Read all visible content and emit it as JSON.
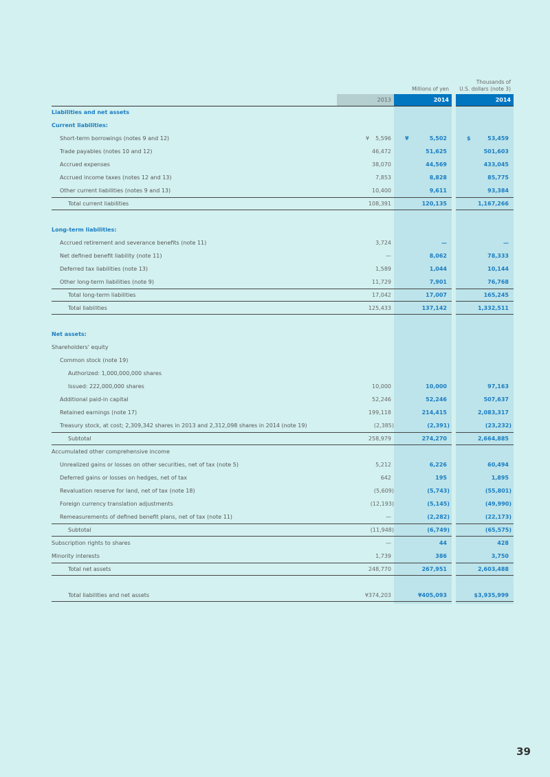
{
  "header": {
    "units_yen": "Millions of yen",
    "units_usd_line1": "Thousands of",
    "units_usd_line2": "U.S. dollars (note 3)",
    "col_2013": "2013",
    "col_2014_yen": "2014",
    "col_2014_usd": "2014"
  },
  "colors": {
    "accent": "#0075c0",
    "blue_text": "#1a7cc1",
    "shade": "#bde4ea",
    "background": "#d3f1f0"
  },
  "rows": [
    {
      "label": "Liabilities and net assets",
      "type": "section",
      "indent": 0
    },
    {
      "label": "Current liabilities:",
      "type": "section",
      "indent": 0
    },
    {
      "label": "Short-term borrowings (notes 9 and 12)",
      "indent": 1,
      "values": [
        "5,596",
        "5,502",
        "53,459"
      ],
      "currency": [
        "¥",
        "¥",
        "$"
      ]
    },
    {
      "label": "Trade payables (notes 10 and 12)",
      "indent": 1,
      "values": [
        "46,472",
        "51,625",
        "501,603"
      ]
    },
    {
      "label": "Accrued expenses",
      "indent": 1,
      "values": [
        "38,070",
        "44,569",
        "433,045"
      ]
    },
    {
      "label": "Accrued income taxes (notes 12 and 13)",
      "indent": 1,
      "values": [
        "7,853",
        "8,828",
        "85,775"
      ]
    },
    {
      "label": "Other current liabilities (notes 9 and 13)",
      "indent": 1,
      "values": [
        "10,400",
        "9,611",
        "93,384"
      ]
    },
    {
      "label": "Total current liabilities",
      "indent": 2,
      "type": "total",
      "values": [
        "108,391",
        "120,135",
        "1,167,266"
      ]
    },
    {
      "label": "",
      "type": "blank"
    },
    {
      "label": "Long-term liabilities:",
      "type": "section",
      "indent": 0
    },
    {
      "label": "Accrued retirement and severance benefits (note 11)",
      "indent": 1,
      "values": [
        "3,724",
        "—",
        "—"
      ]
    },
    {
      "label": "Net defined benefit liability (note 11)",
      "indent": 1,
      "values": [
        "—",
        "8,062",
        "78,333"
      ]
    },
    {
      "label": "Deferred tax liabilities (note 13)",
      "indent": 1,
      "values": [
        "1,589",
        "1,044",
        "10,144"
      ]
    },
    {
      "label": "Other long-term liabilities (note 9)",
      "indent": 1,
      "values": [
        "11,729",
        "7,901",
        "76,768"
      ]
    },
    {
      "label": "Total long-term liabilities",
      "indent": 2,
      "type": "total",
      "values": [
        "17,042",
        "17,007",
        "165,245"
      ]
    },
    {
      "label": "Total liabilities",
      "indent": 2,
      "type": "total-bottom",
      "values": [
        "125,433",
        "137,142",
        "1,332,511"
      ]
    },
    {
      "label": "",
      "type": "blank"
    },
    {
      "label": "Net assets:",
      "type": "section",
      "indent": 0
    },
    {
      "label": "Shareholders' equity",
      "indent": 0
    },
    {
      "label": "Common stock (note 19)",
      "indent": 1
    },
    {
      "label": "Authorized: 1,000,000,000 shares",
      "indent": 2
    },
    {
      "label": "Issued: 222,000,000 shares",
      "indent": 2,
      "values": [
        "10,000",
        "10,000",
        "97,163"
      ]
    },
    {
      "label": "Additional paid-in capital",
      "indent": 1,
      "values": [
        "52,246",
        "52,246",
        "507,637"
      ]
    },
    {
      "label": "Retained earnings (note 17)",
      "indent": 1,
      "values": [
        "199,118",
        "214,415",
        "2,083,317"
      ]
    },
    {
      "label": "Treasury stock, at cost; 2,309,342 shares in 2013 and 2,312,098 shares in 2014 (note 19)",
      "indent": 1,
      "values": [
        "(2,385)",
        "(2,391)",
        "(23,232)"
      ]
    },
    {
      "label": "Subtotal",
      "indent": 2,
      "type": "total",
      "values": [
        "258,979",
        "274,270",
        "2,664,885"
      ]
    },
    {
      "label": "Accumulated other comprehensive income",
      "indent": 0
    },
    {
      "label": "Unrealized gains or losses on other securities, net of tax (note 5)",
      "indent": 1,
      "values": [
        "5,212",
        "6,226",
        "60,494"
      ]
    },
    {
      "label": "Deferred gains or losses on hedges, net of tax",
      "indent": 1,
      "values": [
        "642",
        "195",
        "1,895"
      ]
    },
    {
      "label": "Revaluation reserve for land, net of tax (note 18)",
      "indent": 1,
      "values": [
        "(5,609)",
        "(5,743)",
        "(55,801)"
      ]
    },
    {
      "label": "Foreign currency translation adjustments",
      "indent": 1,
      "values": [
        "(12,193)",
        "(5,145)",
        "(49,990)"
      ]
    },
    {
      "label": "Remeasurements of defined benefit plans, net of tax (note 11)",
      "indent": 1,
      "values": [
        "—",
        "(2,282)",
        "(22,173)"
      ]
    },
    {
      "label": "Subtotal",
      "indent": 2,
      "type": "total",
      "values": [
        "(11,948)",
        "(6,749)",
        "(65,575)"
      ]
    },
    {
      "label": "Subscription rights to shares",
      "indent": 0,
      "values": [
        "—",
        "44",
        "428"
      ]
    },
    {
      "label": "Minority interests",
      "indent": 0,
      "values": [
        "1,739",
        "386",
        "3,750"
      ]
    },
    {
      "label": "Total net assets",
      "indent": 2,
      "type": "total",
      "values": [
        "248,770",
        "267,951",
        "2,603,488"
      ]
    },
    {
      "label": "",
      "type": "blank"
    },
    {
      "label": "Total liabilities and net assets",
      "indent": 2,
      "type": "total-bottom",
      "values": [
        "¥374,203",
        "¥405,093",
        "$3,935,999"
      ]
    }
  ],
  "page_number": "39"
}
